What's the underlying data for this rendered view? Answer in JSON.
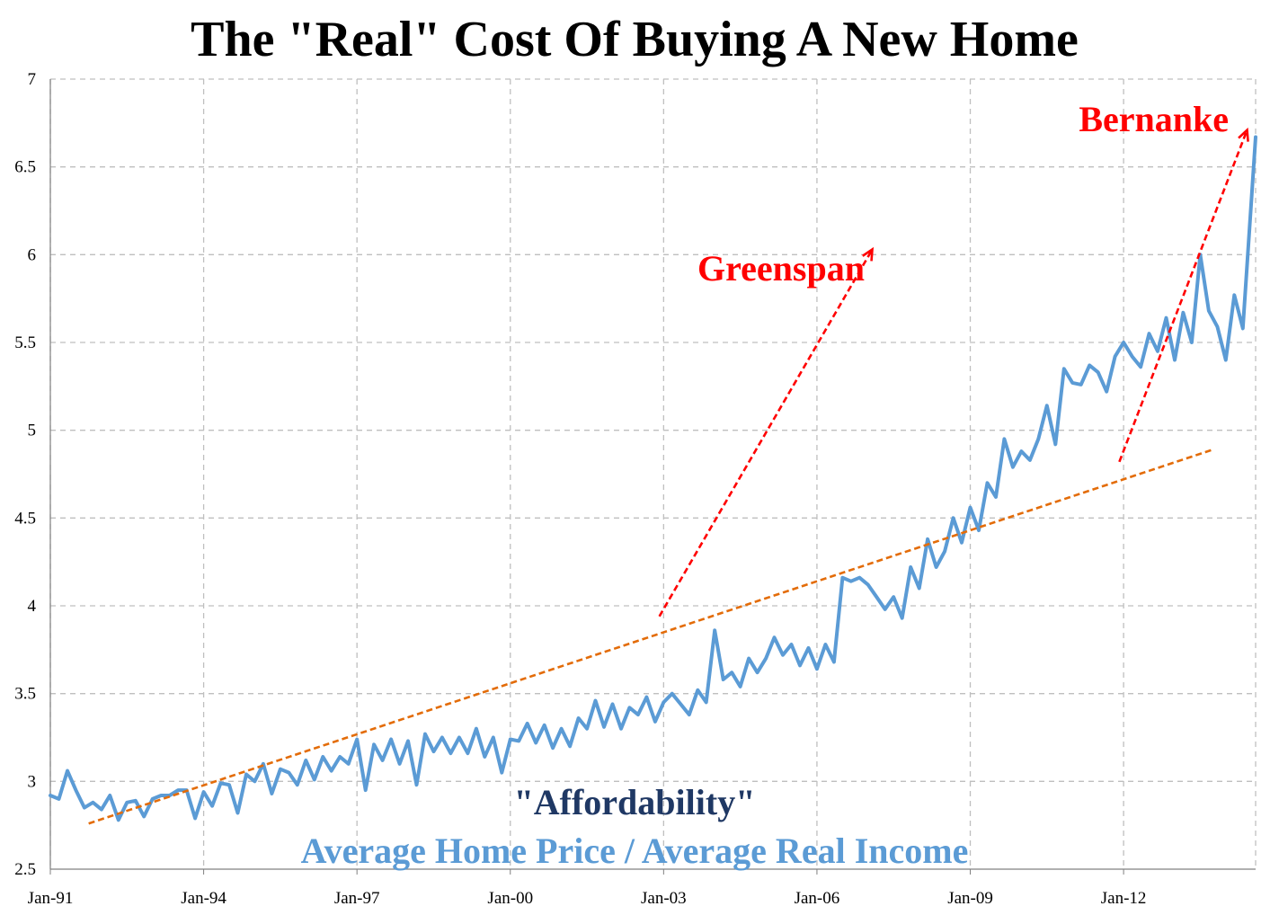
{
  "chart_data": {
    "type": "line",
    "title": "The \"Real\" Cost Of Buying A New Home",
    "xlabel": "",
    "ylabel": "",
    "ylim": [
      2.5,
      7
    ],
    "yticks": [
      2.5,
      3,
      3.5,
      4,
      4.5,
      5,
      5.5,
      6,
      6.5,
      7
    ],
    "ytick_labels": [
      "2.5",
      "3",
      "3.5",
      "4",
      "4.5",
      "5",
      "5.5",
      "6",
      "6.5",
      "7"
    ],
    "xlim": [
      "1991-01",
      "2014-08"
    ],
    "xticks": [
      "1991-01",
      "1994-01",
      "1997-01",
      "2000-01",
      "2003-01",
      "2006-01",
      "2009-01",
      "2012-01"
    ],
    "xtick_labels": [
      "Jan-91",
      "Jan-94",
      "Jan-97",
      "Jan-00",
      "Jan-03",
      "Jan-06",
      "Jan-09",
      "Jan-12"
    ],
    "grid": true,
    "colors": {
      "series": "#5b9bd5",
      "trend": "#e36c09",
      "arrow": "#ff0000",
      "grid": "#bfbfbf"
    },
    "series": [
      {
        "name": "",
        "points": [
          [
            "1991-01",
            2.92
          ],
          [
            "1991-03",
            2.9
          ],
          [
            "1991-05",
            3.06
          ],
          [
            "1991-07",
            2.95
          ],
          [
            "1991-09",
            2.85
          ],
          [
            "1991-11",
            2.88
          ],
          [
            "1992-01",
            2.84
          ],
          [
            "1992-03",
            2.92
          ],
          [
            "1992-05",
            2.78
          ],
          [
            "1992-07",
            2.88
          ],
          [
            "1992-09",
            2.89
          ],
          [
            "1992-11",
            2.8
          ],
          [
            "1993-01",
            2.9
          ],
          [
            "1993-03",
            2.92
          ],
          [
            "1993-05",
            2.92
          ],
          [
            "1993-07",
            2.95
          ],
          [
            "1993-09",
            2.95
          ],
          [
            "1993-11",
            2.79
          ],
          [
            "1994-01",
            2.94
          ],
          [
            "1994-03",
            2.86
          ],
          [
            "1994-05",
            2.99
          ],
          [
            "1994-07",
            2.98
          ],
          [
            "1994-09",
            2.82
          ],
          [
            "1994-11",
            3.04
          ],
          [
            "1995-01",
            3.0
          ],
          [
            "1995-03",
            3.1
          ],
          [
            "1995-05",
            2.93
          ],
          [
            "1995-07",
            3.07
          ],
          [
            "1995-09",
            3.05
          ],
          [
            "1995-11",
            2.98
          ],
          [
            "1996-01",
            3.12
          ],
          [
            "1996-03",
            3.01
          ],
          [
            "1996-05",
            3.14
          ],
          [
            "1996-07",
            3.06
          ],
          [
            "1996-09",
            3.14
          ],
          [
            "1996-11",
            3.1
          ],
          [
            "1997-01",
            3.24
          ],
          [
            "1997-03",
            2.95
          ],
          [
            "1997-05",
            3.21
          ],
          [
            "1997-07",
            3.12
          ],
          [
            "1997-09",
            3.24
          ],
          [
            "1997-11",
            3.1
          ],
          [
            "1998-01",
            3.23
          ],
          [
            "1998-03",
            2.98
          ],
          [
            "1998-05",
            3.27
          ],
          [
            "1998-07",
            3.17
          ],
          [
            "1998-09",
            3.25
          ],
          [
            "1998-11",
            3.16
          ],
          [
            "1999-01",
            3.25
          ],
          [
            "1999-03",
            3.16
          ],
          [
            "1999-05",
            3.3
          ],
          [
            "1999-07",
            3.14
          ],
          [
            "1999-09",
            3.25
          ],
          [
            "1999-11",
            3.05
          ],
          [
            "2000-01",
            3.24
          ],
          [
            "2000-03",
            3.23
          ],
          [
            "2000-05",
            3.33
          ],
          [
            "2000-07",
            3.22
          ],
          [
            "2000-09",
            3.32
          ],
          [
            "2000-11",
            3.19
          ],
          [
            "2001-01",
            3.3
          ],
          [
            "2001-03",
            3.2
          ],
          [
            "2001-05",
            3.36
          ],
          [
            "2001-07",
            3.3
          ],
          [
            "2001-09",
            3.46
          ],
          [
            "2001-11",
            3.31
          ],
          [
            "2002-01",
            3.44
          ],
          [
            "2002-03",
            3.3
          ],
          [
            "2002-05",
            3.42
          ],
          [
            "2002-07",
            3.38
          ],
          [
            "2002-09",
            3.48
          ],
          [
            "2002-11",
            3.34
          ],
          [
            "2003-01",
            3.45
          ],
          [
            "2003-03",
            3.5
          ],
          [
            "2003-05",
            3.44
          ],
          [
            "2003-07",
            3.38
          ],
          [
            "2003-09",
            3.52
          ],
          [
            "2003-11",
            3.45
          ],
          [
            "2004-01",
            3.86
          ],
          [
            "2004-03",
            3.58
          ],
          [
            "2004-05",
            3.62
          ],
          [
            "2004-07",
            3.54
          ],
          [
            "2004-09",
            3.7
          ],
          [
            "2004-11",
            3.62
          ],
          [
            "2005-01",
            3.7
          ],
          [
            "2005-03",
            3.82
          ],
          [
            "2005-05",
            3.72
          ],
          [
            "2005-07",
            3.78
          ],
          [
            "2005-09",
            3.66
          ],
          [
            "2005-11",
            3.76
          ],
          [
            "2006-01",
            3.64
          ],
          [
            "2006-03",
            3.78
          ],
          [
            "2006-05",
            3.68
          ],
          [
            "2006-07",
            4.16
          ],
          [
            "2006-09",
            4.14
          ],
          [
            "2006-11",
            4.16
          ],
          [
            "2007-01",
            4.12
          ],
          [
            "2007-03",
            4.05
          ],
          [
            "2007-05",
            3.98
          ],
          [
            "2007-07",
            4.05
          ],
          [
            "2007-09",
            3.93
          ],
          [
            "2007-11",
            4.22
          ],
          [
            "2008-01",
            4.1
          ],
          [
            "2008-03",
            4.38
          ],
          [
            "2008-05",
            4.22
          ],
          [
            "2008-07",
            4.31
          ],
          [
            "2008-09",
            4.5
          ],
          [
            "2008-11",
            4.36
          ],
          [
            "2009-01",
            4.56
          ],
          [
            "2009-03",
            4.43
          ],
          [
            "2009-05",
            4.7
          ],
          [
            "2009-07",
            4.62
          ],
          [
            "2009-09",
            4.95
          ],
          [
            "2009-11",
            4.79
          ],
          [
            "2010-01",
            4.88
          ],
          [
            "2010-03",
            4.83
          ],
          [
            "2010-05",
            4.95
          ],
          [
            "2010-07",
            5.14
          ],
          [
            "2010-09",
            4.92
          ],
          [
            "2010-11",
            5.35
          ],
          [
            "2011-01",
            5.27
          ],
          [
            "2011-03",
            5.26
          ],
          [
            "2011-05",
            5.37
          ],
          [
            "2011-07",
            5.33
          ],
          [
            "2011-09",
            5.22
          ],
          [
            "2011-11",
            5.42
          ],
          [
            "2012-01",
            5.5
          ],
          [
            "2012-03",
            5.42
          ],
          [
            "2012-05",
            5.36
          ],
          [
            "2012-07",
            5.55
          ],
          [
            "2012-09",
            5.45
          ],
          [
            "2012-11",
            5.64
          ],
          [
            "2013-01",
            5.4
          ],
          [
            "2013-03",
            5.67
          ],
          [
            "2013-05",
            5.5
          ],
          [
            "2013-07",
            6.0
          ],
          [
            "2013-09",
            5.68
          ],
          [
            "2013-11",
            5.59
          ],
          [
            "2014-01",
            5.4
          ],
          [
            "2014-03",
            5.77
          ],
          [
            "2014-05",
            5.58
          ],
          [
            "2014-08",
            6.67
          ]
        ]
      }
    ],
    "trend_lines": [
      {
        "from": [
          "1991-10",
          2.76
        ],
        "to": [
          "2013-10",
          4.89
        ]
      }
    ],
    "annotations": [
      {
        "text": "Greenspan",
        "arrow_from": [
          "2002-12",
          3.94
        ],
        "arrow_to": [
          "2007-02",
          6.03
        ]
      },
      {
        "text": "Bernanke",
        "arrow_from": [
          "2011-12",
          4.82
        ],
        "arrow_to": [
          "2014-06",
          6.71
        ]
      }
    ],
    "captions": [
      "\"Affordability\"",
      "Average Home Price / Average Real Income"
    ]
  }
}
